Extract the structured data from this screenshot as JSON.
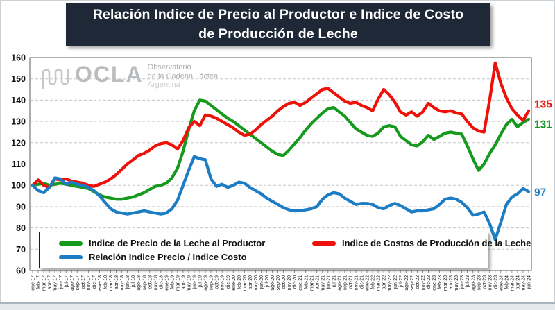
{
  "title": {
    "line1": "Relación Indice de Precio al Productor e Indice de Costo",
    "line2": "de Producción de Leche"
  },
  "watermark": {
    "brand": "OCLA",
    "subtitle_line1": "Observatorio",
    "subtitle_line2": "de la Cadena Láctea",
    "subtitle_line3": "Argentina"
  },
  "legend": {
    "items": [
      {
        "label": "Indice de Precio de la Leche al Productor",
        "color": "#169a1e"
      },
      {
        "label": "Indice de Costos de Producción de la Leche",
        "color": "#ee1109"
      },
      {
        "label": "Relación Indice Precio / Indice Costo",
        "color": "#1d7dc4"
      }
    ]
  },
  "chart_data": {
    "type": "line",
    "title": "Relación Indice de Precio al Productor e Indice de Costo de Producción de Leche",
    "ylim": [
      60,
      160
    ],
    "yticks": [
      160,
      150,
      140,
      130,
      120,
      110,
      100,
      90,
      80,
      70,
      60
    ],
    "grid": "horizontal-dashed",
    "legend_position": "bottom-left",
    "x": [
      "ene-17",
      "feb-17",
      "mar-17",
      "abr-17",
      "may-17",
      "jun-17",
      "jul-17",
      "ago-17",
      "sep-17",
      "oct-17",
      "nov-17",
      "dic-17",
      "ene-18",
      "feb-18",
      "mar-18",
      "abr-18",
      "may-18",
      "jun-18",
      "jul-18",
      "ago-18",
      "sep-18",
      "oct-18",
      "nov-18",
      "dic-18",
      "ene-19",
      "feb-19",
      "mar-19",
      "abr-19",
      "may-19",
      "jun-19",
      "jul-19",
      "ago-19",
      "sep-19",
      "oct-19",
      "nov-19",
      "dic-19",
      "ene-20",
      "feb-20",
      "mar-20",
      "abr-20",
      "may-20",
      "jun-20",
      "jul-20",
      "ago-20",
      "sep-20",
      "oct-20",
      "nov-20",
      "dic-20",
      "ene-21",
      "feb-21",
      "mar-21",
      "abr-21",
      "may-21",
      "jun-21",
      "jul-21",
      "ago-21",
      "sep-21",
      "oct-21",
      "nov-21",
      "dic-21",
      "ene-22",
      "feb-22",
      "mar-22",
      "abr-22",
      "may-22",
      "jun-22",
      "jul-22",
      "ago-22",
      "sep-22",
      "oct-22",
      "nov-22",
      "dic-22",
      "ene-23",
      "feb-23",
      "mar-23",
      "abr-23",
      "may-23",
      "jun-23",
      "jul-23",
      "ago-23",
      "sep-23",
      "oct-23",
      "nov-23",
      "dic-23",
      "ene-24",
      "feb-24",
      "mar-24",
      "abr-24",
      "may-24",
      "jun-24"
    ],
    "series": [
      {
        "name": "Indice de Precio de la Leche al Productor",
        "color": "#169a1e",
        "end_label": "131",
        "values": [
          100,
          100.5,
          101,
          100,
          100.5,
          101,
          100.5,
          100,
          99.5,
          99,
          98.5,
          97,
          95.5,
          94.5,
          94,
          93.5,
          93.5,
          94,
          94.5,
          95.5,
          96.5,
          98,
          99.5,
          100,
          101,
          103.5,
          108,
          116,
          126,
          135,
          140,
          139.5,
          137.5,
          135.5,
          133.5,
          131.5,
          130,
          128,
          126,
          124,
          122,
          120,
          118,
          116,
          114.5,
          114,
          116.5,
          119.5,
          122.5,
          126,
          129,
          131.5,
          134,
          136,
          136.5,
          134.5,
          132.5,
          129.5,
          126.5,
          125,
          123.5,
          123,
          124.5,
          127.5,
          128,
          127.5,
          123,
          121,
          119,
          118.5,
          120.5,
          123.5,
          121.5,
          123,
          124.5,
          125,
          124.5,
          124,
          118.5,
          112.5,
          107,
          110,
          115,
          119,
          124,
          128.5,
          131,
          127.5,
          129.5,
          131
        ]
      },
      {
        "name": "Indice de Costos de Producción de la Leche",
        "color": "#ee1109",
        "end_label": "135",
        "values": [
          100,
          102.5,
          100,
          99,
          103,
          102.5,
          103,
          102,
          101.5,
          101,
          100,
          99.5,
          100.5,
          101.5,
          103,
          105,
          107.5,
          110,
          112,
          114,
          115,
          116.5,
          118.5,
          119.5,
          120,
          119,
          117,
          121,
          127,
          130,
          128,
          133,
          132.5,
          131.5,
          130,
          128.5,
          127,
          125,
          123.5,
          124,
          126,
          128.5,
          130.5,
          132.5,
          135,
          137,
          138.5,
          139,
          137.5,
          139,
          141,
          143,
          145,
          145.5,
          143.5,
          141.5,
          139.5,
          138.5,
          139,
          137.5,
          136.5,
          135,
          140.5,
          145,
          142.5,
          139,
          134.5,
          133,
          134.5,
          132.5,
          134.5,
          138.5,
          136.5,
          135,
          134.5,
          135,
          134,
          133.5,
          130,
          127,
          125.5,
          125,
          140,
          157.5,
          148,
          141,
          136,
          133,
          130.5,
          135
        ]
      },
      {
        "name": "Relación Indice Precio / Indice Costo",
        "color": "#1d7dc4",
        "end_label": "97",
        "values": [
          100,
          97.5,
          96.5,
          99,
          103.5,
          103,
          100.5,
          101.5,
          100.5,
          100,
          99,
          97.5,
          95,
          92,
          89,
          87.5,
          87,
          86.5,
          87,
          87.5,
          88,
          87.5,
          87,
          86.5,
          87,
          89,
          93,
          100,
          107,
          113.5,
          112.5,
          112,
          103,
          99.5,
          100.5,
          99,
          100,
          101.5,
          101,
          99,
          97.5,
          96,
          94,
          92.5,
          91,
          89.5,
          88.5,
          88,
          88,
          88.5,
          89,
          90,
          93.5,
          95.5,
          96.5,
          96,
          94,
          92.5,
          91,
          91.5,
          91.5,
          91,
          89.5,
          89,
          90.5,
          91.5,
          90.5,
          89,
          87.5,
          88,
          88,
          88.5,
          89,
          91,
          93.5,
          94,
          93.5,
          92,
          89.5,
          86,
          86.5,
          87.5,
          82,
          74.5,
          82.5,
          91,
          94.5,
          96,
          98.5,
          97
        ]
      }
    ]
  }
}
